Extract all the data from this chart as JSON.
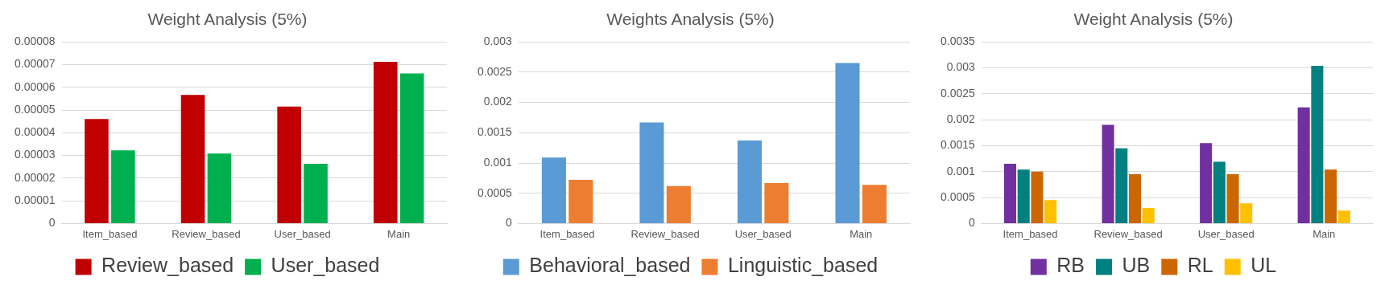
{
  "chart_data": [
    {
      "type": "bar",
      "title": "Weight Analysis (5%)",
      "categories": [
        "Item_based",
        "Review_based",
        "User_based",
        "Main"
      ],
      "series": [
        {
          "name": "Review_based",
          "color": "#c00000",
          "values": [
            4.6e-05,
            5.66e-05,
            5.15e-05,
            7.12e-05
          ]
        },
        {
          "name": "User_based",
          "color": "#00b050",
          "values": [
            3.22e-05,
            3.08e-05,
            2.63e-05,
            6.61e-05
          ]
        }
      ],
      "ylim": [
        0,
        8e-05
      ],
      "yticks": [
        0,
        {
          "value": 1e-05,
          "label": "0.00001"
        },
        {
          "value": 2e-05,
          "label": "0.00002"
        },
        {
          "value": 3e-05,
          "label": "0.00003"
        },
        {
          "value": 4e-05,
          "label": "0.00004"
        },
        {
          "value": 5e-05,
          "label": "0.00005"
        },
        {
          "value": 6e-05,
          "label": "0.00006"
        },
        {
          "value": 7e-05,
          "label": "0.00007"
        },
        {
          "value": 8e-05,
          "label": "0.00008"
        }
      ],
      "grid": "y",
      "legend": "bottom"
    },
    {
      "type": "bar",
      "title": "Weights Analysis (5%)",
      "categories": [
        "Item_based",
        "Review_based",
        "User_based",
        "Main"
      ],
      "series": [
        {
          "name": "Behavioral_based",
          "color": "#5b9bd5",
          "values": [
            0.00109,
            0.00167,
            0.00137,
            0.00265
          ]
        },
        {
          "name": "Linguistic_based",
          "color": "#ed7d31",
          "values": [
            0.00072,
            0.00062,
            0.00067,
            0.00064
          ]
        }
      ],
      "ylim": [
        0,
        0.003
      ],
      "yticks": [
        0,
        0.0005,
        0.001,
        0.0015,
        0.002,
        0.0025,
        0.003
      ],
      "grid": "y",
      "legend": "bottom"
    },
    {
      "type": "bar",
      "title": "Weight Analysis (5%)",
      "categories": [
        "Item_based",
        "Review_based",
        "User_based",
        "Main"
      ],
      "series": [
        {
          "name": "RB",
          "color": "#7030a0",
          "values": [
            0.00115,
            0.0019,
            0.00155,
            0.00224
          ]
        },
        {
          "name": "UB",
          "color": "#008080",
          "values": [
            0.00104,
            0.00145,
            0.00119,
            0.00304
          ]
        },
        {
          "name": "RL",
          "color": "#cc6600",
          "values": [
            0.001,
            0.00095,
            0.00095,
            0.00104
          ]
        },
        {
          "name": "UL",
          "color": "#ffc000",
          "values": [
            0.00045,
            0.0003,
            0.00039,
            0.00025
          ]
        }
      ],
      "ylim": [
        0,
        0.0035
      ],
      "yticks": [
        0,
        0.0005,
        0.001,
        0.0015,
        0.002,
        0.0025,
        0.003,
        0.0035
      ],
      "grid": "y",
      "legend": "bottom"
    }
  ]
}
